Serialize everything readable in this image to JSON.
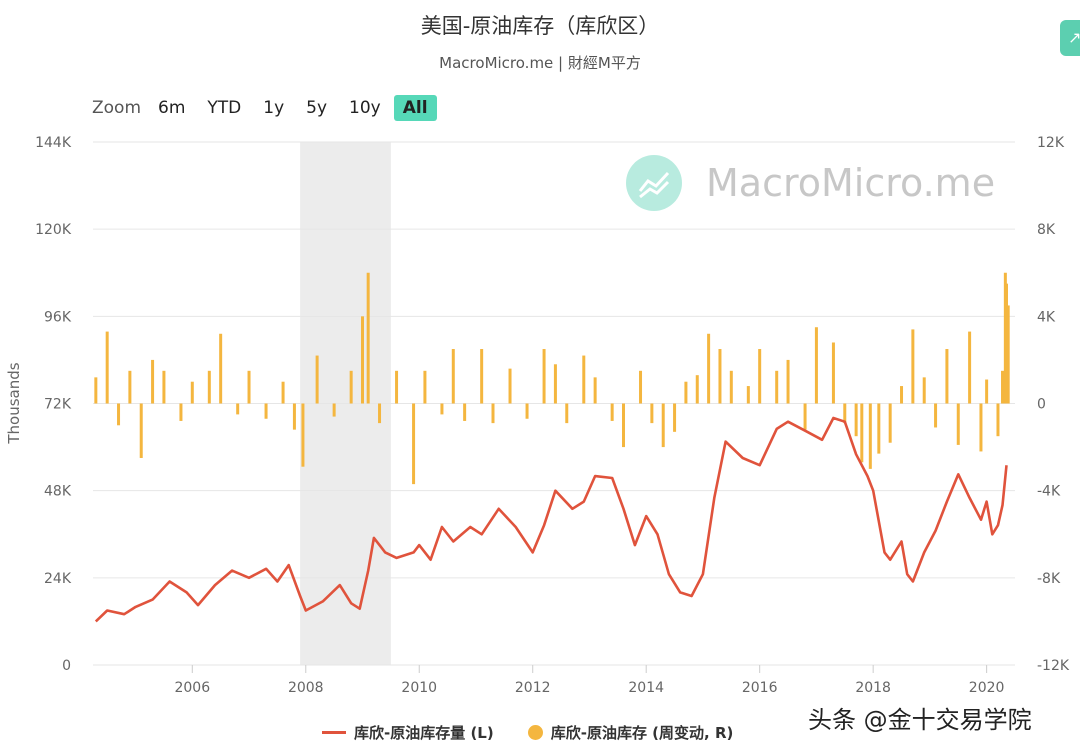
{
  "header": {
    "title": "美国-原油库存（库欣区）",
    "subtitle": "MacroMicro.me | 財經M平方",
    "corner_icon": "chart-icon"
  },
  "zoom": {
    "label": "Zoom",
    "buttons": [
      "6m",
      "YTD",
      "1y",
      "5y",
      "10y",
      "All"
    ],
    "active": "All"
  },
  "watermark": {
    "text": "MacroMicro.me"
  },
  "source_text": "头条 @金十交易学院",
  "colors": {
    "line": "#e0533c",
    "bar": "#f4b63f",
    "accent": "#56d8b8",
    "recession": "#ececec"
  },
  "chart_data": {
    "type": "line",
    "x_ticks": [
      "2006",
      "2008",
      "2010",
      "2012",
      "2014",
      "2016",
      "2018",
      "2020"
    ],
    "x_range": [
      2004.25,
      2020.5
    ],
    "left_axis": {
      "label": "Thousands",
      "ticks": [
        "0",
        "24K",
        "48K",
        "72K",
        "96K",
        "120K",
        "144K"
      ],
      "range": [
        0,
        144000
      ]
    },
    "right_axis": {
      "ticks": [
        "-12K",
        "-8K",
        "-4K",
        "0",
        "4K",
        "8K",
        "12K"
      ],
      "range": [
        -12000,
        12000
      ]
    },
    "shaded_region": [
      2007.9,
      2009.5
    ],
    "grid": true,
    "legend_position": "bottom-center",
    "series": [
      {
        "name": "库欣-原油库存量 (L)",
        "axis": "left",
        "type": "line",
        "points": [
          [
            2004.3,
            12000
          ],
          [
            2004.5,
            15000
          ],
          [
            2004.8,
            14000
          ],
          [
            2005.0,
            16000
          ],
          [
            2005.3,
            18000
          ],
          [
            2005.6,
            23000
          ],
          [
            2005.9,
            20000
          ],
          [
            2006.1,
            16500
          ],
          [
            2006.4,
            22000
          ],
          [
            2006.7,
            26000
          ],
          [
            2007.0,
            24000
          ],
          [
            2007.3,
            26500
          ],
          [
            2007.5,
            23000
          ],
          [
            2007.7,
            27500
          ],
          [
            2007.9,
            19000
          ],
          [
            2008.0,
            15000
          ],
          [
            2008.3,
            17500
          ],
          [
            2008.6,
            22000
          ],
          [
            2008.8,
            17000
          ],
          [
            2008.95,
            15500
          ],
          [
            2009.1,
            26000
          ],
          [
            2009.2,
            35000
          ],
          [
            2009.4,
            31000
          ],
          [
            2009.6,
            29500
          ],
          [
            2009.9,
            31000
          ],
          [
            2010.0,
            33000
          ],
          [
            2010.2,
            29000
          ],
          [
            2010.4,
            38000
          ],
          [
            2010.6,
            34000
          ],
          [
            2010.9,
            38000
          ],
          [
            2011.1,
            36000
          ],
          [
            2011.4,
            43000
          ],
          [
            2011.7,
            38000
          ],
          [
            2012.0,
            31000
          ],
          [
            2012.2,
            38500
          ],
          [
            2012.4,
            48000
          ],
          [
            2012.7,
            43000
          ],
          [
            2012.9,
            45000
          ],
          [
            2013.1,
            52000
          ],
          [
            2013.4,
            51500
          ],
          [
            2013.6,
            43000
          ],
          [
            2013.8,
            33000
          ],
          [
            2014.0,
            41000
          ],
          [
            2014.2,
            36000
          ],
          [
            2014.4,
            25000
          ],
          [
            2014.6,
            20000
          ],
          [
            2014.8,
            19000
          ],
          [
            2015.0,
            25000
          ],
          [
            2015.2,
            46000
          ],
          [
            2015.4,
            61500
          ],
          [
            2015.7,
            57000
          ],
          [
            2016.0,
            55000
          ],
          [
            2016.3,
            65000
          ],
          [
            2016.5,
            67000
          ],
          [
            2016.8,
            64500
          ],
          [
            2017.1,
            62000
          ],
          [
            2017.3,
            68000
          ],
          [
            2017.5,
            67000
          ],
          [
            2017.7,
            58000
          ],
          [
            2017.9,
            52000
          ],
          [
            2018.0,
            48000
          ],
          [
            2018.2,
            31000
          ],
          [
            2018.3,
            29000
          ],
          [
            2018.5,
            34000
          ],
          [
            2018.6,
            25000
          ],
          [
            2018.7,
            23000
          ],
          [
            2018.9,
            31000
          ],
          [
            2019.1,
            37000
          ],
          [
            2019.3,
            45000
          ],
          [
            2019.5,
            52500
          ],
          [
            2019.7,
            46000
          ],
          [
            2019.9,
            40000
          ],
          [
            2020.0,
            45000
          ],
          [
            2020.1,
            36000
          ],
          [
            2020.2,
            38500
          ],
          [
            2020.28,
            44000
          ],
          [
            2020.35,
            55000
          ]
        ]
      },
      {
        "name": "库欣-原油库存 (周变动, R)",
        "axis": "right",
        "type": "bar",
        "points": [
          [
            2004.3,
            1200
          ],
          [
            2004.5,
            3300
          ],
          [
            2004.7,
            -1000
          ],
          [
            2004.9,
            1500
          ],
          [
            2005.1,
            -2500
          ],
          [
            2005.3,
            2000
          ],
          [
            2005.5,
            1500
          ],
          [
            2005.8,
            -800
          ],
          [
            2006.0,
            1000
          ],
          [
            2006.3,
            1500
          ],
          [
            2006.5,
            3200
          ],
          [
            2006.8,
            -500
          ],
          [
            2007.0,
            1500
          ],
          [
            2007.3,
            -700
          ],
          [
            2007.6,
            1000
          ],
          [
            2007.8,
            -1200
          ],
          [
            2007.95,
            -2900
          ],
          [
            2008.2,
            2200
          ],
          [
            2008.5,
            -600
          ],
          [
            2008.8,
            1500
          ],
          [
            2009.0,
            4000
          ],
          [
            2009.1,
            6000
          ],
          [
            2009.3,
            -900
          ],
          [
            2009.6,
            1500
          ],
          [
            2009.9,
            -3700
          ],
          [
            2010.1,
            1500
          ],
          [
            2010.4,
            -500
          ],
          [
            2010.6,
            2500
          ],
          [
            2010.8,
            -800
          ],
          [
            2011.1,
            2500
          ],
          [
            2011.3,
            -900
          ],
          [
            2011.6,
            1600
          ],
          [
            2011.9,
            -700
          ],
          [
            2012.2,
            2500
          ],
          [
            2012.4,
            1800
          ],
          [
            2012.6,
            -900
          ],
          [
            2012.9,
            2200
          ],
          [
            2013.1,
            1200
          ],
          [
            2013.4,
            -800
          ],
          [
            2013.6,
            -2000
          ],
          [
            2013.9,
            1500
          ],
          [
            2014.1,
            -900
          ],
          [
            2014.3,
            -2000
          ],
          [
            2014.5,
            -1300
          ],
          [
            2014.7,
            1000
          ],
          [
            2014.9,
            1300
          ],
          [
            2015.1,
            3200
          ],
          [
            2015.3,
            2500
          ],
          [
            2015.5,
            1500
          ],
          [
            2015.8,
            800
          ],
          [
            2016.0,
            2500
          ],
          [
            2016.3,
            1500
          ],
          [
            2016.5,
            2000
          ],
          [
            2016.8,
            -1200
          ],
          [
            2017.0,
            3500
          ],
          [
            2017.3,
            2800
          ],
          [
            2017.5,
            -900
          ],
          [
            2017.7,
            -1500
          ],
          [
            2017.8,
            -2700
          ],
          [
            2017.95,
            -3000
          ],
          [
            2018.1,
            -2300
          ],
          [
            2018.3,
            -1800
          ],
          [
            2018.5,
            800
          ],
          [
            2018.7,
            3400
          ],
          [
            2018.9,
            1200
          ],
          [
            2019.1,
            -1100
          ],
          [
            2019.3,
            2500
          ],
          [
            2019.5,
            -1900
          ],
          [
            2019.7,
            3300
          ],
          [
            2019.9,
            -2200
          ],
          [
            2020.0,
            1100
          ],
          [
            2020.2,
            -1500
          ],
          [
            2020.28,
            1500
          ],
          [
            2020.33,
            6000
          ],
          [
            2020.35,
            5500
          ],
          [
            2020.38,
            4500
          ]
        ]
      }
    ]
  }
}
